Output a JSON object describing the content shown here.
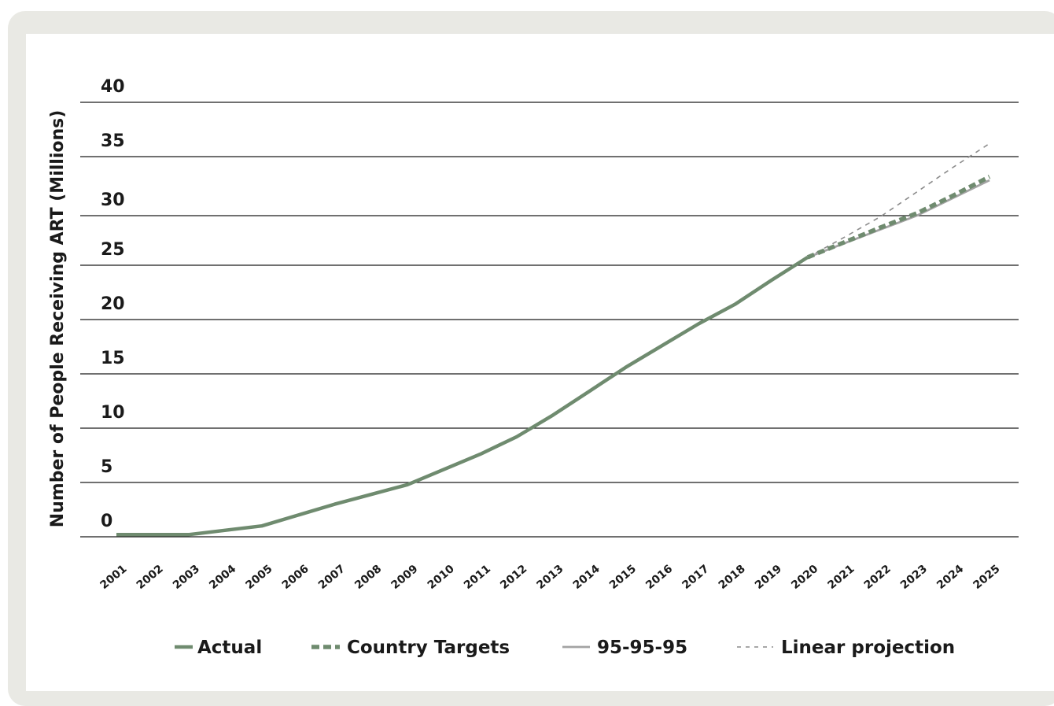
{
  "chart_data": {
    "type": "line",
    "ylabel": "Number of People Receiving ART (Millions)",
    "xlabel": "",
    "ylim": [
      0,
      40
    ],
    "yticks": [
      0,
      5,
      10,
      15,
      20,
      25,
      30,
      35,
      40
    ],
    "x": [
      "2001",
      "2002",
      "2003",
      "2004",
      "2005",
      "2006",
      "2007",
      "2008",
      "2009",
      "2010",
      "2011",
      "2012",
      "2013",
      "2014",
      "2015",
      "2016",
      "2017",
      "2018",
      "2019",
      "2020",
      "2021",
      "2022",
      "2023",
      "2024",
      "2025"
    ],
    "grid": true,
    "legend_position": "bottom",
    "series": [
      {
        "name": "Actual",
        "style": "solid-thick",
        "color": "#6f8b6f",
        "x": [
          "2001",
          "2002",
          "2003",
          "2004",
          "2005",
          "2006",
          "2007",
          "2008",
          "2009",
          "2010",
          "2011",
          "2012",
          "2013",
          "2014",
          "2015",
          "2016",
          "2017",
          "2018",
          "2019",
          "2020"
        ],
        "values": [
          0.2,
          0.2,
          0.2,
          0.6,
          1.0,
          2.0,
          3.0,
          3.9,
          4.8,
          6.2,
          7.6,
          9.2,
          11.2,
          13.4,
          15.6,
          17.6,
          19.6,
          21.4,
          23.6,
          25.8
        ]
      },
      {
        "name": "Country Targets",
        "style": "dashed-thick",
        "color": "#6f8b6f",
        "x": [
          "2020",
          "2021",
          "2022",
          "2023",
          "2024",
          "2025"
        ],
        "values": [
          25.8,
          27.3,
          28.8,
          30.2,
          31.7,
          33.3
        ]
      },
      {
        "name": "95-95-95",
        "style": "solid-thin",
        "color": "#a3a3a3",
        "x": [
          "2020",
          "2021",
          "2022",
          "2023",
          "2024",
          "2025"
        ],
        "values": [
          25.8,
          27.2,
          28.6,
          30.0,
          31.5,
          33.0
        ]
      },
      {
        "name": "Linear projection",
        "style": "dashed-thin",
        "color": "#8c8c8c",
        "x": [
          "2020",
          "2021",
          "2022",
          "2023",
          "2024",
          "2025"
        ],
        "values": [
          25.8,
          27.8,
          29.9,
          32.0,
          34.1,
          36.2
        ]
      }
    ]
  }
}
